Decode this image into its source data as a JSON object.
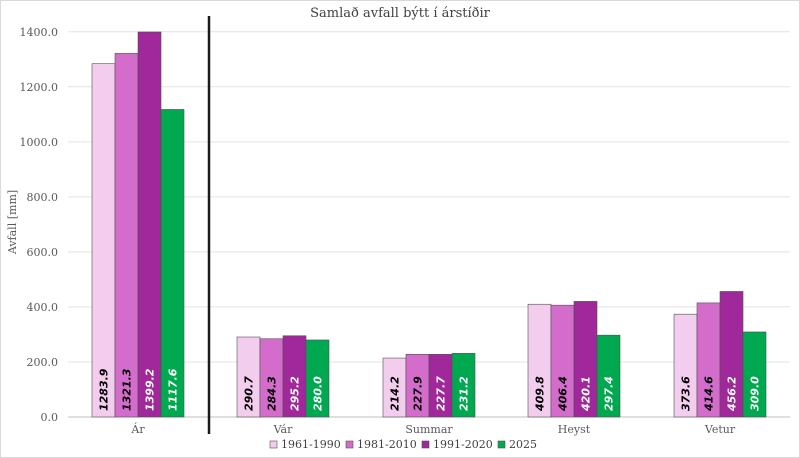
{
  "chart_data": {
    "type": "bar",
    "title": "Samlað avfall býtt í árstíðir",
    "ylabel": "Avfall [mm]",
    "xlabel": "",
    "ylim": [
      0,
      1450
    ],
    "yticks": [
      "0.0",
      "200.0",
      "400.0",
      "600.0",
      "800.0",
      "1000.0",
      "1200.0",
      "1400.0"
    ],
    "ytick_values": [
      0,
      200,
      400,
      600,
      800,
      1000,
      1200,
      1400
    ],
    "categories": [
      "Ár",
      "Vár",
      "Summar",
      "Heyst",
      "Vetur"
    ],
    "series": [
      {
        "name": "1961-1990",
        "color": "#f2cdee",
        "label_color": "#000000",
        "values": [
          1283.9,
          290.7,
          214.2,
          409.8,
          373.6
        ],
        "labels": [
          "1283.9",
          "290.7",
          "214.2",
          "409.8",
          "373.6"
        ]
      },
      {
        "name": "1981-2010",
        "color": "#d46ccc",
        "label_color": "#000000",
        "values": [
          1321.3,
          284.3,
          227.9,
          406.4,
          414.6
        ],
        "labels": [
          "1321.3",
          "284.3",
          "227.9",
          "406.4",
          "414.6"
        ]
      },
      {
        "name": "1991-2020",
        "color": "#a0289a",
        "label_color": "#ffffff",
        "values": [
          1399.2,
          295.2,
          227.7,
          420.1,
          456.2
        ],
        "labels": [
          "1399.2",
          "295.2",
          "227.7",
          "420.1",
          "456.2"
        ]
      },
      {
        "name": "2025",
        "color": "#00a84f",
        "label_color": "#ffffff",
        "values": [
          1117.6,
          280.0,
          231.2,
          297.4,
          309.0
        ],
        "labels": [
          "1117.6",
          "280.0",
          "231.2",
          "297.4",
          "309.0"
        ]
      }
    ],
    "grid": true,
    "legend_position": "bottom",
    "separator_after_category": "Ár"
  }
}
